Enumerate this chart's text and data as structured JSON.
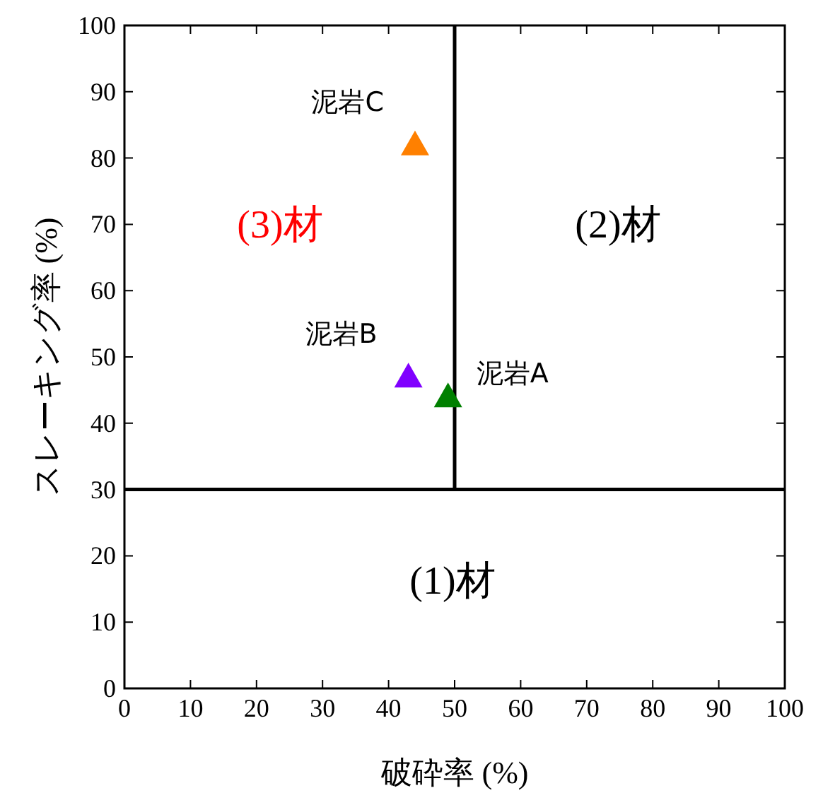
{
  "chart_data": {
    "type": "scatter",
    "xlabel": "破砕率 (%)",
    "ylabel": "スレーキング率 (%)",
    "xlim": [
      0,
      100
    ],
    "ylim": [
      0,
      100
    ],
    "xticks": [
      0,
      10,
      20,
      30,
      40,
      50,
      60,
      70,
      80,
      90,
      100
    ],
    "yticks": [
      0,
      10,
      20,
      30,
      40,
      50,
      60,
      70,
      80,
      90,
      100
    ],
    "marker": "triangle",
    "series": [
      {
        "name": "泥岩A",
        "color": "#008000",
        "x": [
          49
        ],
        "values": [
          44
        ]
      },
      {
        "name": "泥岩B",
        "color": "#8000ff",
        "x": [
          43
        ],
        "values": [
          47
        ]
      },
      {
        "name": "泥岩C",
        "color": "#ff8000",
        "x": [
          44
        ],
        "values": [
          82
        ]
      }
    ],
    "ref_lines": [
      {
        "axis": "y",
        "value": 30,
        "color": "#000000"
      },
      {
        "axis": "x",
        "value": 50,
        "color": "#000000"
      }
    ],
    "annotations": [
      "(1)材",
      "(2)材",
      "(3)材"
    ]
  }
}
